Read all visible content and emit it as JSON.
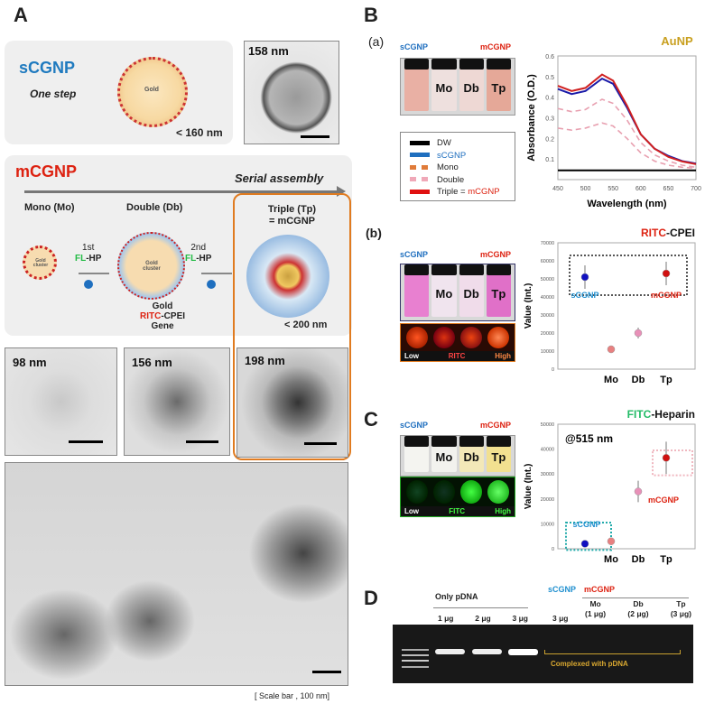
{
  "panel_a": {
    "label": "A",
    "scgnp": {
      "title": "sCGNP",
      "subtitle": "One step",
      "size": "< 160 nm",
      "core_label": "Gold",
      "tem_size": "158 nm"
    },
    "mcgnp": {
      "title": "mCGNP",
      "arrow_label": "Serial assembly",
      "mono": "Mono (Mo)",
      "double": "Double (Db)",
      "triple_line1": "Triple (Tp)",
      "triple_line2": "= mCGNP",
      "step1_num": "1st",
      "step2_num": "2nd",
      "fl": "FL",
      "hp": "-HP",
      "cluster": "Gold cluster",
      "gene_line1": "Gold",
      "ritc": "RITC",
      "cpei": "-CPEI",
      "gene_line3": "Gene",
      "size": "< 200 nm"
    },
    "tem": [
      "98 nm",
      "156 nm",
      "198 nm"
    ],
    "scale_note": "[ Scale bar , 100  nm]"
  },
  "panel_b": {
    "label": "B",
    "sub_a": "(a)",
    "sub_b": "(b)",
    "vial_labels": [
      "",
      "Mo",
      "Db",
      "Tp"
    ],
    "arrow_left": "sCGNP",
    "arrow_right": "mCGNP",
    "legend": [
      {
        "label": "DW",
        "color": "#000000",
        "style": "solid"
      },
      {
        "label": "sCGNP",
        "color": "#1f6fbf",
        "style": "solid"
      },
      {
        "label": "Mono",
        "color": "#e07b39",
        "style": "dashed"
      },
      {
        "label": "Double",
        "color": "#f0a8b8",
        "style": "dashed"
      },
      {
        "label": "Triple = ",
        "label2": "mCGNP",
        "color": "#e01010",
        "style": "solid"
      }
    ],
    "strip": {
      "low": "Low",
      "name": "RITC",
      "high": "High"
    }
  },
  "panel_c": {
    "label": "C",
    "vial_labels": [
      "",
      "Mo",
      "Db",
      "Tp"
    ],
    "arrow_left": "sCGNP",
    "arrow_right": "mCGNP",
    "strip": {
      "low": "Low",
      "name": "FITC",
      "high": "High"
    }
  },
  "panel_d": {
    "label": "D",
    "only": "Only pDNA",
    "lanes": [
      "1 μg",
      "2 μg",
      "3 μg"
    ],
    "scgnp": "sCGNP",
    "mcgnp": "mCGNP",
    "scgnp_lane": "3 μg",
    "mc_lanes": [
      [
        "Mo",
        "(1 μg)"
      ],
      [
        "Db",
        "(2 μg)"
      ],
      [
        "Tp",
        "(3 μg)"
      ]
    ],
    "complexed": "Complexed with pDNA"
  },
  "chart_data": [
    {
      "type": "line",
      "title": "AuNP",
      "xlabel": "Wavelength (nm)",
      "ylabel": "Absorbance (O.D.)",
      "xlim": [
        450,
        700
      ],
      "ylim": [
        0,
        0.6
      ],
      "xticks": [
        450,
        500,
        550,
        600,
        650,
        700
      ],
      "yticks": [
        0.1,
        0.2,
        0.3,
        0.4,
        0.5,
        0.6
      ],
      "x": [
        450,
        475,
        500,
        530,
        550,
        575,
        600,
        625,
        650,
        675,
        700
      ],
      "series": [
        {
          "name": "DW",
          "color": "#000000",
          "dash": false,
          "values": [
            0.045,
            0.045,
            0.045,
            0.045,
            0.045,
            0.045,
            0.045,
            0.045,
            0.045,
            0.045,
            0.045
          ]
        },
        {
          "name": "Mono",
          "color": "#e8a0b0",
          "dash": true,
          "values": [
            0.25,
            0.24,
            0.25,
            0.275,
            0.26,
            0.2,
            0.13,
            0.09,
            0.07,
            0.06,
            0.055
          ]
        },
        {
          "name": "Double",
          "color": "#e8a0b0",
          "dash": true,
          "values": [
            0.345,
            0.33,
            0.34,
            0.39,
            0.37,
            0.29,
            0.18,
            0.12,
            0.09,
            0.07,
            0.06
          ]
        },
        {
          "name": "sCGNP",
          "color": "#1a1aa8",
          "dash": false,
          "values": [
            0.44,
            0.415,
            0.43,
            0.49,
            0.465,
            0.35,
            0.22,
            0.15,
            0.115,
            0.09,
            0.078
          ]
        },
        {
          "name": "Triple = mCGNP",
          "color": "#d02020",
          "dash": false,
          "values": [
            0.455,
            0.43,
            0.445,
            0.51,
            0.48,
            0.36,
            0.22,
            0.15,
            0.11,
            0.088,
            0.075
          ]
        }
      ]
    },
    {
      "type": "scatter",
      "title": "RITC",
      "title2": "-CPEI",
      "ylabel": "Value (Int.)",
      "ylim": [
        0,
        70000
      ],
      "yticks": [
        0,
        10000,
        20000,
        30000,
        40000,
        50000,
        60000,
        70000
      ],
      "categories": [
        "Mo",
        "Db",
        "Tp"
      ],
      "points": [
        {
          "label": "sCGNP",
          "value": 51000,
          "err": 6500,
          "color": "#1010c0"
        },
        {
          "label": "Mo",
          "value": 11000,
          "err": 1000,
          "color": "#e88080"
        },
        {
          "label": "Db",
          "value": 20000,
          "err": 3000,
          "color": "#e890b8"
        },
        {
          "label": "Tp",
          "value": 53000,
          "err": 6500,
          "color": "#d01010"
        }
      ],
      "annotations": [
        "sCGNP",
        "mCGNP"
      ]
    },
    {
      "type": "scatter",
      "title": "FITC",
      "title2": "-Heparin",
      "note": "@515 nm",
      "ylabel": "Value (Int.)",
      "ylim": [
        0,
        50000
      ],
      "yticks": [
        0,
        10000,
        20000,
        30000,
        40000,
        50000
      ],
      "categories": [
        "Mo",
        "Db",
        "Tp"
      ],
      "points": [
        {
          "label": "sCGNP",
          "value": 2000,
          "err": 0,
          "color": "#1010c0"
        },
        {
          "label": "Mo",
          "value": 3000,
          "err": 0,
          "color": "#e88080"
        },
        {
          "label": "Db",
          "value": 23000,
          "err": 4300,
          "color": "#e890b8"
        },
        {
          "label": "Tp",
          "value": 36500,
          "err": 6500,
          "color": "#d01010"
        }
      ],
      "annotations": [
        "sCGNP",
        "mCGNP"
      ]
    }
  ]
}
